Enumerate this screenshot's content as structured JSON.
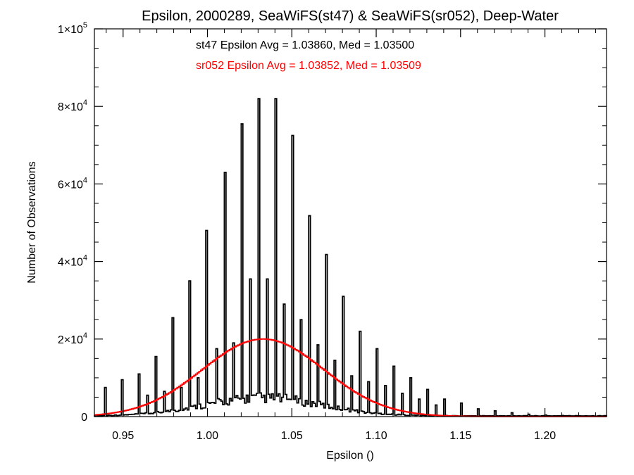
{
  "chart_data": {
    "type": "bar",
    "title": "Epsilon, 2000289, SeaWiFS(st47) & SeaWiFS(sr052), Deep-Water",
    "xlabel": "Epsilon ()",
    "ylabel": "Number of Observations",
    "xlim": [
      0.933,
      1.2365
    ],
    "ylim": [
      0,
      100000
    ],
    "grid": false,
    "x_ticks": [
      {
        "value": 0.95,
        "label": "0.95"
      },
      {
        "value": 1.0,
        "label": "1.00"
      },
      {
        "value": 1.05,
        "label": "1.05"
      },
      {
        "value": 1.1,
        "label": "1.10"
      },
      {
        "value": 1.15,
        "label": "1.15"
      },
      {
        "value": 1.2,
        "label": "1.20"
      }
    ],
    "y_ticks": [
      {
        "value": 0,
        "mantissa": "0",
        "exp": ""
      },
      {
        "value": 20000,
        "mantissa": "2×10",
        "exp": "4"
      },
      {
        "value": 40000,
        "mantissa": "4×10",
        "exp": "4"
      },
      {
        "value": 60000,
        "mantissa": "6×10",
        "exp": "4"
      },
      {
        "value": 80000,
        "mantissa": "8×10",
        "exp": "4"
      },
      {
        "value": 100000,
        "mantissa": "1×10",
        "exp": "5"
      }
    ],
    "annotations": [
      {
        "text": "st47 Epsilon Avg = 1.03860, Med = 1.03500",
        "color": "#000000"
      },
      {
        "text": "sr052 Epsilon Avg = 1.03852, Med = 1.03509",
        "color": "#ff0000"
      }
    ],
    "series": [
      {
        "style": "black step histogram",
        "color": "#000000",
        "bin_width": 0.001,
        "spikes": [
          {
            "x": 0.94,
            "y": 7500
          },
          {
            "x": 0.95,
            "y": 9500
          },
          {
            "x": 0.96,
            "y": 11000
          },
          {
            "x": 0.97,
            "y": 15500
          },
          {
            "x": 0.98,
            "y": 25500
          },
          {
            "x": 0.99,
            "y": 35000
          },
          {
            "x": 1.0,
            "y": 48000
          },
          {
            "x": 1.01,
            "y": 63000
          },
          {
            "x": 1.02,
            "y": 75500
          },
          {
            "x": 1.03,
            "y": 82000
          },
          {
            "x": 1.04,
            "y": 82000
          },
          {
            "x": 1.05,
            "y": 72500
          },
          {
            "x": 1.06,
            "y": 51800
          },
          {
            "x": 1.07,
            "y": 41800
          },
          {
            "x": 1.08,
            "y": 31000
          },
          {
            "x": 1.09,
            "y": 22000
          },
          {
            "x": 1.1,
            "y": 17500
          },
          {
            "x": 1.11,
            "y": 13000
          },
          {
            "x": 1.12,
            "y": 10000
          },
          {
            "x": 1.13,
            "y": 7000
          },
          {
            "x": 1.14,
            "y": 4500
          },
          {
            "x": 1.15,
            "y": 3500
          },
          {
            "x": 1.16,
            "y": 2000
          },
          {
            "x": 1.17,
            "y": 1500
          },
          {
            "x": 1.18,
            "y": 1000
          },
          {
            "x": 1.19,
            "y": 600
          },
          {
            "x": 1.2,
            "y": 400
          },
          {
            "x": 1.21,
            "y": 300
          },
          {
            "x": 1.22,
            "y": 200
          },
          {
            "x": 1.23,
            "y": 100
          }
        ],
        "half_spikes": [
          {
            "x": 0.965,
            "y": 5500
          },
          {
            "x": 0.975,
            "y": 6500
          },
          {
            "x": 0.985,
            "y": 7500
          },
          {
            "x": 0.995,
            "y": 10000
          },
          {
            "x": 1.005,
            "y": 17500
          },
          {
            "x": 1.015,
            "y": 19000
          },
          {
            "x": 1.025,
            "y": 35500
          },
          {
            "x": 1.035,
            "y": 35500
          },
          {
            "x": 1.045,
            "y": 29000
          },
          {
            "x": 1.055,
            "y": 25000
          },
          {
            "x": 1.065,
            "y": 18500
          },
          {
            "x": 1.075,
            "y": 14500
          },
          {
            "x": 1.085,
            "y": 10500
          },
          {
            "x": 1.095,
            "y": 9000
          },
          {
            "x": 1.105,
            "y": 8000
          },
          {
            "x": 1.115,
            "y": 6000
          },
          {
            "x": 1.125,
            "y": 4500
          },
          {
            "x": 1.135,
            "y": 3000
          }
        ]
      },
      {
        "style": "red step histogram",
        "color": "#ff0000",
        "peak": 20000,
        "center": 1.033,
        "sigma": 0.036
      }
    ]
  }
}
